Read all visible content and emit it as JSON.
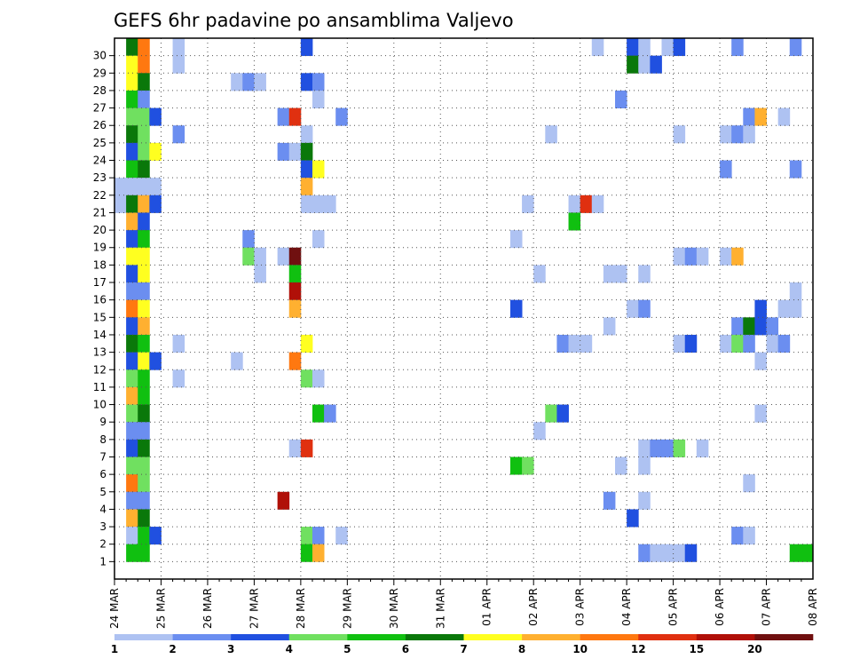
{
  "chart_data": {
    "type": "heatmap",
    "title": "GEFS 6hr padavine po ansamblima Valjevo",
    "x_tick_labels": [
      "24 MAR",
      "25 MAR",
      "26 MAR",
      "27 MAR",
      "28 MAR",
      "29 MAR",
      "30 MAR",
      "31 MAR",
      "01 APR",
      "02 APR",
      "03 APR",
      "04 APR",
      "05 APR",
      "06 APR",
      "07 APR",
      "08 APR"
    ],
    "y_tick_labels": [
      "1",
      "2",
      "3",
      "4",
      "5",
      "6",
      "7",
      "8",
      "9",
      "10",
      "11",
      "12",
      "13",
      "14",
      "15",
      "16",
      "17",
      "18",
      "19",
      "20",
      "21",
      "22",
      "23",
      "24",
      "25",
      "26",
      "27",
      "28",
      "29",
      "30"
    ],
    "members": 31,
    "steps_per_day": 4,
    "xlim_steps": [
      0,
      59
    ],
    "ylim_members": [
      0,
      30
    ],
    "grid": true,
    "legend_placement": "bottom",
    "color_scale": {
      "boundaries": [
        "1",
        "2",
        "3",
        "4",
        "5",
        "6",
        "7",
        "8",
        "10",
        "12",
        "15",
        "20"
      ],
      "colors": [
        "#aec2f2",
        "#6b8ef0",
        "#2050e0",
        "#70e060",
        "#10c010",
        "#0a780a",
        "#ffff20",
        "#ffb030",
        "#ff7810",
        "#e03010",
        "#b01008",
        "#701010"
      ]
    },
    "cells_format": "[time_step, member, color_class]",
    "cells": [
      [
        1,
        30,
        5
      ],
      [
        2,
        30,
        8
      ],
      [
        5,
        30,
        0
      ],
      [
        16,
        30,
        2
      ],
      [
        41,
        30,
        0
      ],
      [
        44,
        30,
        2
      ],
      [
        45,
        30,
        0
      ],
      [
        47,
        30,
        0
      ],
      [
        48,
        30,
        2
      ],
      [
        53,
        30,
        1
      ],
      [
        58,
        30,
        1
      ],
      [
        1,
        29,
        6
      ],
      [
        2,
        29,
        8
      ],
      [
        5,
        29,
        0
      ],
      [
        44,
        29,
        5
      ],
      [
        45,
        29,
        0
      ],
      [
        46,
        29,
        2
      ],
      [
        1,
        28,
        6
      ],
      [
        2,
        28,
        5
      ],
      [
        10,
        28,
        0
      ],
      [
        11,
        28,
        1
      ],
      [
        12,
        28,
        0
      ],
      [
        16,
        28,
        2
      ],
      [
        17,
        28,
        1
      ],
      [
        1,
        27,
        4
      ],
      [
        2,
        27,
        1
      ],
      [
        17,
        27,
        0
      ],
      [
        43,
        27,
        1
      ],
      [
        1,
        26,
        3
      ],
      [
        2,
        26,
        3
      ],
      [
        3,
        26,
        2
      ],
      [
        14,
        26,
        1
      ],
      [
        15,
        26,
        9
      ],
      [
        19,
        26,
        1
      ],
      [
        54,
        26,
        1
      ],
      [
        55,
        26,
        7
      ],
      [
        57,
        26,
        0
      ],
      [
        1,
        25,
        5
      ],
      [
        2,
        25,
        3
      ],
      [
        5,
        25,
        1
      ],
      [
        16,
        25,
        0
      ],
      [
        37,
        25,
        0
      ],
      [
        48,
        25,
        0
      ],
      [
        52,
        25,
        0
      ],
      [
        53,
        25,
        1
      ],
      [
        54,
        25,
        0
      ],
      [
        1,
        24,
        2
      ],
      [
        2,
        24,
        3
      ],
      [
        3,
        24,
        6
      ],
      [
        14,
        24,
        1
      ],
      [
        15,
        24,
        0
      ],
      [
        16,
        24,
        5
      ],
      [
        1,
        23,
        4
      ],
      [
        2,
        23,
        5
      ],
      [
        16,
        23,
        2
      ],
      [
        17,
        23,
        6
      ],
      [
        52,
        23,
        1
      ],
      [
        58,
        23,
        1
      ],
      [
        0,
        22,
        0
      ],
      [
        1,
        22,
        0
      ],
      [
        2,
        22,
        0
      ],
      [
        3,
        22,
        0
      ],
      [
        16,
        22,
        7
      ],
      [
        0,
        21,
        0
      ],
      [
        1,
        21,
        5
      ],
      [
        2,
        21,
        7
      ],
      [
        3,
        21,
        2
      ],
      [
        16,
        21,
        0
      ],
      [
        17,
        21,
        0
      ],
      [
        18,
        21,
        0
      ],
      [
        35,
        21,
        0
      ],
      [
        39,
        21,
        0
      ],
      [
        40,
        21,
        9
      ],
      [
        41,
        21,
        0
      ],
      [
        1,
        20,
        7
      ],
      [
        2,
        20,
        2
      ],
      [
        39,
        20,
        4
      ],
      [
        1,
        19,
        2
      ],
      [
        2,
        19,
        4
      ],
      [
        11,
        19,
        1
      ],
      [
        17,
        19,
        0
      ],
      [
        34,
        19,
        0
      ],
      [
        1,
        18,
        6
      ],
      [
        2,
        18,
        6
      ],
      [
        11,
        18,
        3
      ],
      [
        12,
        18,
        0
      ],
      [
        14,
        18,
        0
      ],
      [
        15,
        18,
        11
      ],
      [
        48,
        18,
        0
      ],
      [
        49,
        18,
        1
      ],
      [
        50,
        18,
        0
      ],
      [
        52,
        18,
        0
      ],
      [
        53,
        18,
        7
      ],
      [
        1,
        17,
        2
      ],
      [
        2,
        17,
        6
      ],
      [
        12,
        17,
        0
      ],
      [
        15,
        17,
        4
      ],
      [
        36,
        17,
        0
      ],
      [
        42,
        17,
        0
      ],
      [
        43,
        17,
        0
      ],
      [
        45,
        17,
        0
      ],
      [
        1,
        16,
        1
      ],
      [
        2,
        16,
        1
      ],
      [
        15,
        16,
        10
      ],
      [
        58,
        16,
        0
      ],
      [
        1,
        15,
        8
      ],
      [
        2,
        15,
        6
      ],
      [
        15,
        15,
        7
      ],
      [
        34,
        15,
        2
      ],
      [
        44,
        15,
        0
      ],
      [
        45,
        15,
        1
      ],
      [
        55,
        15,
        2
      ],
      [
        57,
        15,
        0
      ],
      [
        58,
        15,
        0
      ],
      [
        1,
        14,
        2
      ],
      [
        2,
        14,
        7
      ],
      [
        42,
        14,
        0
      ],
      [
        53,
        14,
        1
      ],
      [
        54,
        14,
        5
      ],
      [
        55,
        14,
        2
      ],
      [
        56,
        14,
        1
      ],
      [
        1,
        13,
        5
      ],
      [
        2,
        13,
        4
      ],
      [
        5,
        13,
        0
      ],
      [
        16,
        13,
        6
      ],
      [
        38,
        13,
        1
      ],
      [
        39,
        13,
        0
      ],
      [
        40,
        13,
        0
      ],
      [
        48,
        13,
        0
      ],
      [
        49,
        13,
        2
      ],
      [
        52,
        13,
        0
      ],
      [
        53,
        13,
        3
      ],
      [
        54,
        13,
        1
      ],
      [
        56,
        13,
        0
      ],
      [
        57,
        13,
        1
      ],
      [
        1,
        12,
        2
      ],
      [
        2,
        12,
        6
      ],
      [
        3,
        12,
        2
      ],
      [
        10,
        12,
        0
      ],
      [
        15,
        12,
        8
      ],
      [
        55,
        12,
        0
      ],
      [
        1,
        11,
        3
      ],
      [
        2,
        11,
        4
      ],
      [
        5,
        11,
        0
      ],
      [
        16,
        11,
        3
      ],
      [
        17,
        11,
        0
      ],
      [
        1,
        10,
        7
      ],
      [
        2,
        10,
        4
      ],
      [
        1,
        9,
        3
      ],
      [
        2,
        9,
        5
      ],
      [
        17,
        9,
        4
      ],
      [
        18,
        9,
        1
      ],
      [
        37,
        9,
        3
      ],
      [
        38,
        9,
        2
      ],
      [
        55,
        9,
        0
      ],
      [
        1,
        8,
        1
      ],
      [
        2,
        8,
        1
      ],
      [
        36,
        8,
        0
      ],
      [
        1,
        7,
        2
      ],
      [
        2,
        7,
        5
      ],
      [
        15,
        7,
        0
      ],
      [
        16,
        7,
        9
      ],
      [
        45,
        7,
        0
      ],
      [
        46,
        7,
        1
      ],
      [
        47,
        7,
        1
      ],
      [
        48,
        7,
        3
      ],
      [
        50,
        7,
        0
      ],
      [
        1,
        6,
        3
      ],
      [
        2,
        6,
        3
      ],
      [
        34,
        6,
        4
      ],
      [
        35,
        6,
        3
      ],
      [
        43,
        6,
        0
      ],
      [
        45,
        6,
        0
      ],
      [
        1,
        5,
        8
      ],
      [
        2,
        5,
        3
      ],
      [
        54,
        5,
        0
      ],
      [
        1,
        4,
        1
      ],
      [
        2,
        4,
        1
      ],
      [
        14,
        4,
        10
      ],
      [
        42,
        4,
        1
      ],
      [
        45,
        4,
        0
      ],
      [
        1,
        3,
        7
      ],
      [
        2,
        3,
        5
      ],
      [
        44,
        3,
        2
      ],
      [
        1,
        2,
        0
      ],
      [
        2,
        2,
        4
      ],
      [
        3,
        2,
        2
      ],
      [
        16,
        2,
        3
      ],
      [
        17,
        2,
        1
      ],
      [
        19,
        2,
        0
      ],
      [
        53,
        2,
        1
      ],
      [
        54,
        2,
        0
      ],
      [
        1,
        1,
        4
      ],
      [
        2,
        1,
        4
      ],
      [
        16,
        1,
        4
      ],
      [
        17,
        1,
        7
      ],
      [
        45,
        1,
        1
      ],
      [
        46,
        1,
        0
      ],
      [
        47,
        1,
        0
      ],
      [
        48,
        1,
        0
      ],
      [
        49,
        1,
        2
      ],
      [
        58,
        1,
        4
      ],
      [
        59,
        1,
        4
      ]
    ]
  }
}
